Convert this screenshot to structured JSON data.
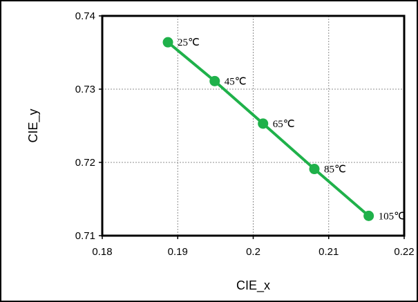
{
  "chart_data": {
    "type": "line",
    "xlabel": "CIE_x",
    "ylabel": "CIE_y",
    "xlim": [
      0.18,
      0.22
    ],
    "ylim": [
      0.71,
      0.74
    ],
    "xticks": [
      "0.18",
      "0.19",
      "0.2",
      "0.21",
      "0.22"
    ],
    "yticks": [
      "0.71",
      "0.72",
      "0.73",
      "0.74"
    ],
    "grid": true,
    "series": [
      {
        "color": "#1fb14a",
        "points": [
          {
            "x": 0.1887,
            "y": 0.7364,
            "label": "25℃"
          },
          {
            "x": 0.1949,
            "y": 0.7311,
            "label": "45℃"
          },
          {
            "x": 0.2013,
            "y": 0.7253,
            "label": "65℃"
          },
          {
            "x": 0.2081,
            "y": 0.7191,
            "label": "85℃"
          },
          {
            "x": 0.2153,
            "y": 0.7127,
            "label": "105℃"
          }
        ]
      }
    ]
  }
}
